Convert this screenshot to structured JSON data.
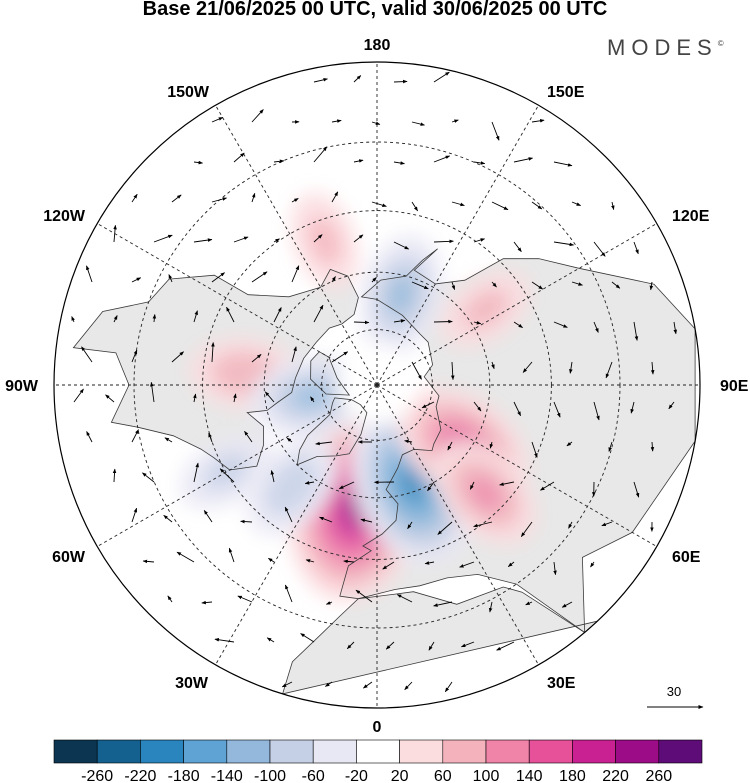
{
  "header": {
    "title": "Base 21/06/2025 00 UTC, valid 30/06/2025 00 UTC",
    "brand": "MODES",
    "brand_mark": "©"
  },
  "map": {
    "projection": "north-polar-stereographic",
    "longitude_labels": {
      "top": "180",
      "bottom": "0",
      "left": "90W",
      "right": "90E",
      "upper_left_1": "150W",
      "upper_left_2": "120W",
      "lower_left_1": "60W",
      "lower_left_2": "30W",
      "upper_right_1": "150E",
      "upper_right_2": "120E",
      "lower_right_1": "60E",
      "lower_right_2": "30E"
    },
    "vector_reference": "30",
    "anomaly_centers": [
      {
        "name": "north-atlantic-europe-high",
        "lon": -10,
        "lat": 57,
        "value": 220
      },
      {
        "name": "scandinavia-low",
        "lon": 20,
        "lat": 62,
        "value": -180
      },
      {
        "name": "west-siberia-high",
        "lon": 55,
        "lat": 62,
        "value": 140
      },
      {
        "name": "east-europe-high",
        "lon": 45,
        "lat": 50,
        "value": 100
      },
      {
        "name": "canada-high",
        "lon": -95,
        "lat": 55,
        "value": 80
      },
      {
        "name": "hudson-low",
        "lon": -80,
        "lat": 72,
        "value": -100
      },
      {
        "name": "north-pacific-high",
        "lon": -160,
        "lat": 50,
        "value": 60
      },
      {
        "name": "bering-low",
        "lon": 165,
        "lat": 65,
        "value": -100
      },
      {
        "name": "east-siberia-high",
        "lon": 125,
        "lat": 55,
        "value": 60
      },
      {
        "name": "atlantic-low",
        "lon": -40,
        "lat": 55,
        "value": -80
      },
      {
        "name": "greenland-low",
        "lon": -60,
        "lat": 45,
        "value": -60
      }
    ]
  },
  "colorbar": {
    "colors": [
      "#0b3550",
      "#14618f",
      "#2a84be",
      "#5ea3d3",
      "#93b8dc",
      "#c5cfe6",
      "#e8e7f4",
      "#ffffff",
      "#fbdcdf",
      "#f4b3bc",
      "#ef84a8",
      "#e6519a",
      "#c92191",
      "#9c0c86",
      "#5e0c78"
    ],
    "labels": [
      "-260",
      "-220",
      "-180",
      "-140",
      "-100",
      "-60",
      "-20",
      "20",
      "60",
      "100",
      "140",
      "180",
      "220",
      "260"
    ]
  }
}
